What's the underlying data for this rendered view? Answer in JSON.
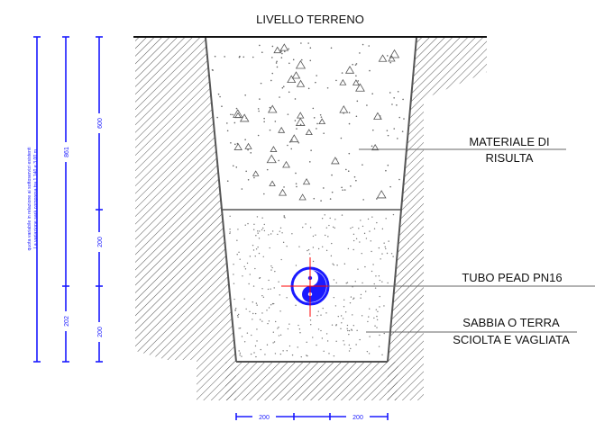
{
  "labels": {
    "ground_level": "LIVELLO TERRENO",
    "fill_material_line1": "MATERIALE DI",
    "fill_material_line2": "RISULTA",
    "pipe": "TUBO PEAD PN16",
    "bedding_line1": "SABBIA O TERRA",
    "bedding_line2": "SCIOLTA E VAGLIATA"
  },
  "vertical_note": {
    "line1": "quota variabile in relazione ai sottoservizi esistenti",
    "line2": "La variazione sarà compresa tra 1,140 e 3,00 m"
  },
  "dimensions": {
    "total_depth": "861",
    "fill_depth": "600",
    "bedding_upper": "200",
    "bedding_lower": "200",
    "pipe_axis_depth": "202",
    "bottom_left": "200",
    "bottom_right": "200"
  },
  "colors": {
    "dimension": "#1a1aff",
    "pipe": "#1a1aff",
    "axis": "#ff0000",
    "outline": "#555555",
    "text": "#111111"
  }
}
